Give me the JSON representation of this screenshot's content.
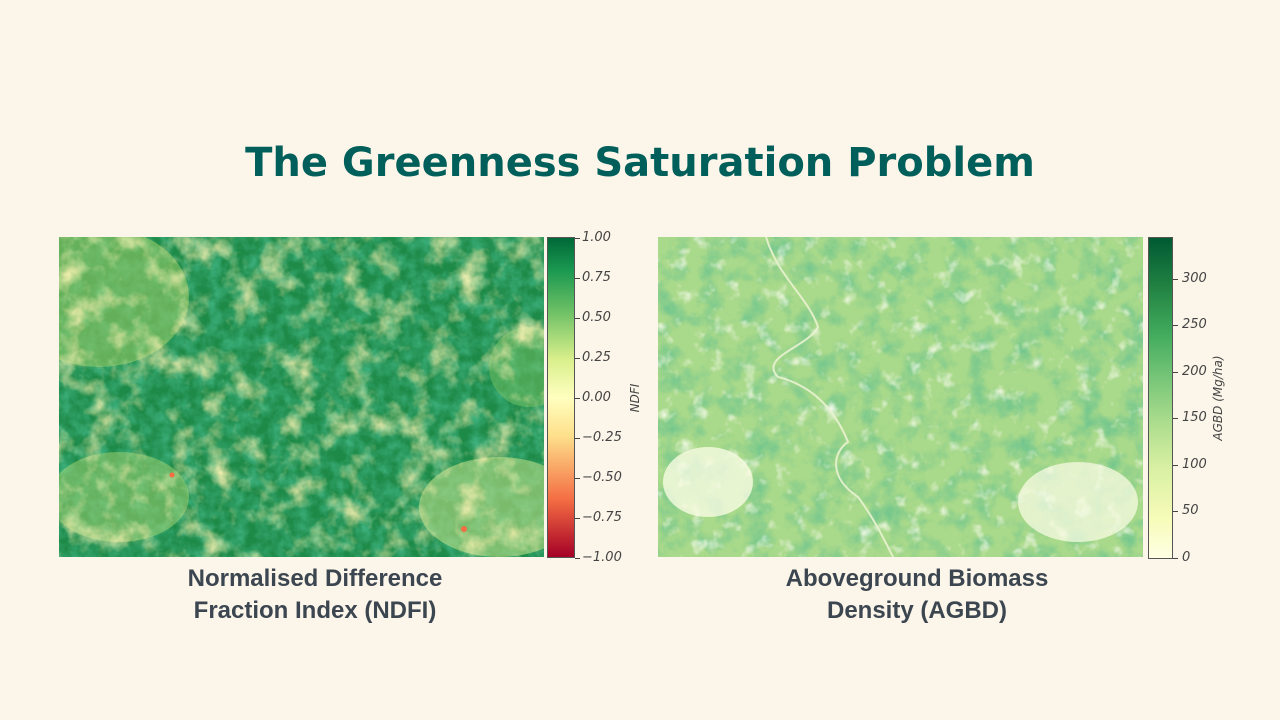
{
  "slide": {
    "title": "The Greenness Saturation Problem"
  },
  "left_panel": {
    "caption_line1": "Normalised Difference",
    "caption_line2": "Fraction Index (NDFI)",
    "colorbar_label": "NDFI",
    "colorbar_ticks": [
      "1.00",
      "0.75",
      "0.50",
      "0.25",
      "0.00",
      "−0.25",
      "−0.50",
      "−0.75",
      "−1.00"
    ],
    "colormap": [
      "#a50026",
      "#f46d43",
      "#fee08b",
      "#d9ef8b",
      "#66bd63",
      "#1a9850",
      "#006837"
    ]
  },
  "right_panel": {
    "caption_line1": "Aboveground Biomass",
    "caption_line2": "Density (AGBD)",
    "colorbar_label": "AGBD (Mg/ha)",
    "colorbar_ticks": [
      "300",
      "250",
      "200",
      "150",
      "100",
      "50",
      "0"
    ],
    "colormap": [
      "#ffffe5",
      "#d9f0a3",
      "#addd8e",
      "#78c679",
      "#41ab5d",
      "#238443",
      "#005a32"
    ]
  }
}
